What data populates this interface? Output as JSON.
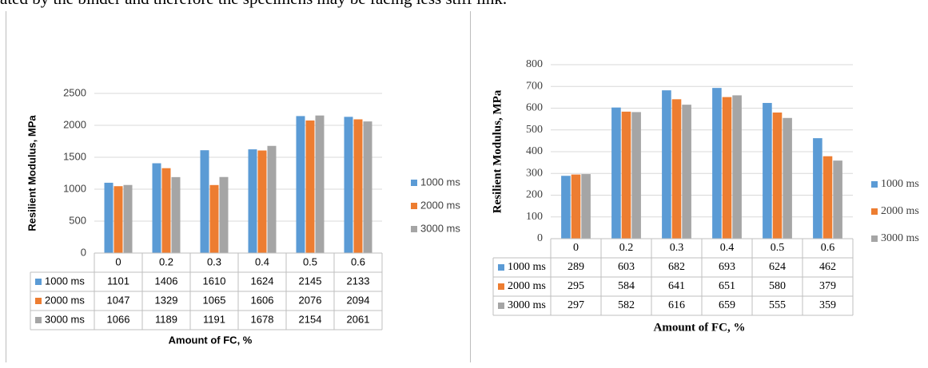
{
  "page": {
    "top_text": "ated by the binder and therefore the specimens may be facing less stiff link."
  },
  "colors": {
    "series": [
      "#5b9bd5",
      "#ed7d31",
      "#a5a5a5"
    ],
    "grid": "#d9d9d9",
    "table_border": "#bfbfbf"
  },
  "chart_data": [
    {
      "type": "bar",
      "title": "",
      "xlabel": "Amount of FC, %",
      "ylabel": "Resilient Modulus, MPa",
      "ylim": [
        0,
        2500
      ],
      "yticks": [
        0,
        500,
        1000,
        1500,
        2000,
        2500
      ],
      "grid": true,
      "legend": "right",
      "data_table": true,
      "categories": [
        "0",
        "0.2",
        "0.3",
        "0.4",
        "0.5",
        "0.6"
      ],
      "series": [
        {
          "name": "1000 ms",
          "values": [
            1101,
            1406,
            1610,
            1624,
            2145,
            2133
          ]
        },
        {
          "name": "2000 ms",
          "values": [
            1047,
            1329,
            1065,
            1606,
            2076,
            2094
          ]
        },
        {
          "name": "3000 ms",
          "values": [
            1066,
            1189,
            1191,
            1678,
            2154,
            2061
          ]
        }
      ]
    },
    {
      "type": "bar",
      "title": "",
      "xlabel": "Amount of FC, %",
      "ylabel": "Resilient Modulus, MPa",
      "ylim": [
        0,
        800
      ],
      "yticks": [
        0,
        100,
        200,
        300,
        400,
        500,
        600,
        700,
        800
      ],
      "grid": true,
      "legend": "right",
      "data_table": true,
      "categories": [
        "0",
        "0.2",
        "0.3",
        "0.4",
        "0.5",
        "0.6"
      ],
      "series": [
        {
          "name": "1000 ms",
          "values": [
            289,
            603,
            682,
            693,
            624,
            462
          ]
        },
        {
          "name": "2000 ms",
          "values": [
            295,
            584,
            641,
            651,
            580,
            379
          ]
        },
        {
          "name": "3000 ms",
          "values": [
            297,
            582,
            616,
            659,
            555,
            359
          ]
        }
      ]
    }
  ]
}
